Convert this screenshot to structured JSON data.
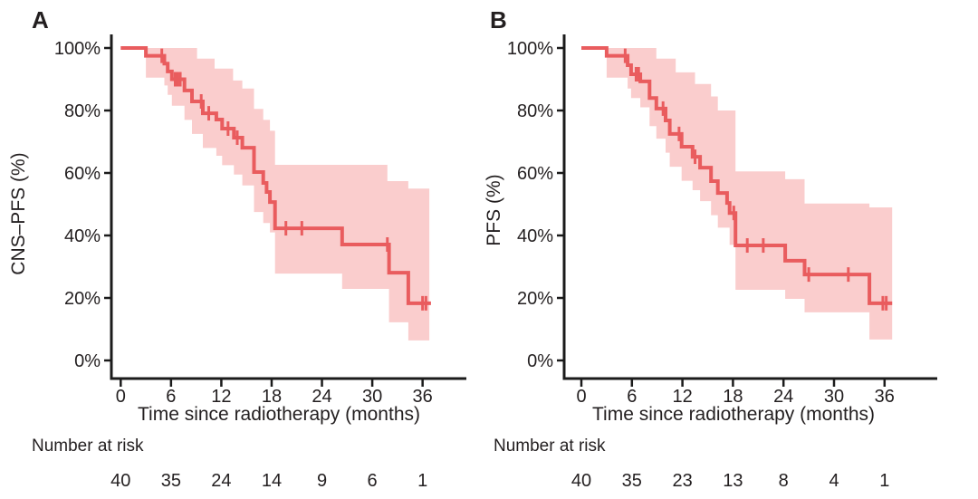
{
  "chart_data": [
    {
      "type": "line",
      "subtype": "kaplan-meier-step-curve-with-confidence-band",
      "panel_label": "A",
      "title": "",
      "xlabel": "Time since radiotherapy (months)",
      "ylabel": "CNS–PFS (%)",
      "x_ticks": [
        0,
        6,
        12,
        18,
        24,
        30,
        36
      ],
      "y_ticks": [
        0,
        20,
        40,
        60,
        80,
        100
      ],
      "y_tick_labels": [
        "0%",
        "20%",
        "40%",
        "60%",
        "80%",
        "100%"
      ],
      "xlim": [
        0,
        41
      ],
      "ylim": [
        0,
        100
      ],
      "grid": false,
      "legend": "none",
      "line_color": "#e95c5e",
      "band_color": "#facdcd",
      "axis_color": "#1b1b1b",
      "series": [
        {
          "name": "CNS-PFS",
          "steps": [
            [
              0,
              100
            ],
            [
              3.0,
              97.5
            ],
            [
              5.2,
              95
            ],
            [
              5.6,
              92.5
            ],
            [
              6.1,
              90
            ],
            [
              7.6,
              86.4
            ],
            [
              8.5,
              82.9
            ],
            [
              9.8,
              79.1
            ],
            [
              11.4,
              77.1
            ],
            [
              12.1,
              74.2
            ],
            [
              13.5,
              71.3
            ],
            [
              14.5,
              68.1
            ],
            [
              15.9,
              60.3
            ],
            [
              17.0,
              56.8
            ],
            [
              17.4,
              53.9
            ],
            [
              17.8,
              50.7
            ],
            [
              18.4,
              42.3
            ],
            [
              26.4,
              37.1
            ],
            [
              32.0,
              28.1
            ],
            [
              34.3,
              18.3
            ]
          ],
          "end_time": 37.0,
          "censors": [
            [
              4.9,
              97.5
            ],
            [
              6.5,
              90
            ],
            [
              6.8,
              90
            ],
            [
              7.1,
              90
            ],
            [
              9.6,
              82.9
            ],
            [
              10.5,
              79.1
            ],
            [
              12.8,
              74.2
            ],
            [
              13.9,
              71.3
            ],
            [
              19.7,
              42.3
            ],
            [
              21.6,
              42.3
            ],
            [
              31.8,
              37.1
            ],
            [
              36.0,
              18.3
            ],
            [
              36.4,
              18.3
            ]
          ],
          "ci_upper": [
            [
              0,
              100
            ],
            [
              9.1,
              96.6
            ],
            [
              11.2,
              93.4
            ],
            [
              13.4,
              89.6
            ],
            [
              14.5,
              87
            ],
            [
              15.9,
              80.5
            ],
            [
              17.0,
              77
            ],
            [
              17.8,
              73.5
            ],
            [
              18.4,
              62.6
            ],
            [
              31.8,
              57.4
            ],
            [
              34.3,
              55
            ]
          ],
          "ci_lower": [
            [
              3.0,
              90.5
            ],
            [
              5.2,
              88
            ],
            [
              5.6,
              85
            ],
            [
              6.1,
              81.5
            ],
            [
              7.6,
              77
            ],
            [
              8.5,
              72.5
            ],
            [
              9.8,
              68
            ],
            [
              11.4,
              65.5
            ],
            [
              12.1,
              62.5
            ],
            [
              13.5,
              59.5
            ],
            [
              14.5,
              56
            ],
            [
              15.9,
              47.5
            ],
            [
              17.0,
              44
            ],
            [
              17.8,
              41
            ],
            [
              18.4,
              27.8
            ],
            [
              26.4,
              22.9
            ],
            [
              32.0,
              12.2
            ],
            [
              34.3,
              6.4
            ]
          ],
          "band_end_time": 36.8
        }
      ],
      "number_at_risk": {
        "label": "Number at risk",
        "times": [
          0,
          6,
          12,
          18,
          24,
          30,
          36
        ],
        "values": [
          40,
          35,
          24,
          14,
          9,
          6,
          1
        ]
      }
    },
    {
      "type": "line",
      "subtype": "kaplan-meier-step-curve-with-confidence-band",
      "panel_label": "B",
      "title": "",
      "xlabel": "Time since radiotherapy (months)",
      "ylabel": "PFS (%)",
      "x_ticks": [
        0,
        6,
        12,
        18,
        24,
        30,
        36
      ],
      "y_ticks": [
        0,
        20,
        40,
        60,
        80,
        100
      ],
      "y_tick_labels": [
        "0%",
        "20%",
        "40%",
        "60%",
        "80%",
        "100%"
      ],
      "xlim": [
        0,
        42
      ],
      "ylim": [
        0,
        100
      ],
      "grid": false,
      "legend": "none",
      "line_color": "#e95c5e",
      "band_color": "#facdcd",
      "axis_color": "#1b1b1b",
      "series": [
        {
          "name": "PFS",
          "steps": [
            [
              0,
              100
            ],
            [
              3.0,
              97.5
            ],
            [
              5.5,
              94.5
            ],
            [
              5.9,
              91.6
            ],
            [
              7.0,
              89.3
            ],
            [
              8.1,
              84.0
            ],
            [
              8.9,
              80.6
            ],
            [
              10.0,
              76.8
            ],
            [
              10.5,
              72.5
            ],
            [
              11.9,
              68.4
            ],
            [
              13.2,
              65.2
            ],
            [
              14.1,
              61.7
            ],
            [
              15.4,
              57.4
            ],
            [
              16.2,
              53.6
            ],
            [
              17.3,
              50.4
            ],
            [
              17.6,
              47.2
            ],
            [
              18.3,
              36.8
            ],
            [
              24.2,
              31.9
            ],
            [
              26.5,
              27.5
            ],
            [
              34.2,
              18.3
            ]
          ],
          "end_time": 36.9,
          "censors": [
            [
              5.2,
              97.5
            ],
            [
              6.5,
              91.6
            ],
            [
              6.8,
              91.6
            ],
            [
              9.7,
              80.6
            ],
            [
              11.6,
              72.5
            ],
            [
              13.5,
              65.2
            ],
            [
              18.1,
              47.2
            ],
            [
              19.7,
              36.8
            ],
            [
              21.6,
              36.8
            ],
            [
              27.0,
              27.5
            ],
            [
              31.7,
              27.5
            ],
            [
              35.8,
              18.3
            ],
            [
              36.2,
              18.3
            ]
          ],
          "ci_upper": [
            [
              0,
              100
            ],
            [
              8.9,
              96.6
            ],
            [
              11.2,
              92.2
            ],
            [
              13.5,
              88.5
            ],
            [
              15.4,
              84.5
            ],
            [
              16.2,
              80
            ],
            [
              18.3,
              60.5
            ],
            [
              24.2,
              58
            ],
            [
              26.5,
              50.2
            ],
            [
              34.2,
              49
            ]
          ],
          "ci_lower": [
            [
              3.0,
              90.5
            ],
            [
              5.5,
              87
            ],
            [
              5.9,
              84
            ],
            [
              7.0,
              81
            ],
            [
              8.1,
              75
            ],
            [
              8.9,
              71
            ],
            [
              10.0,
              66.5
            ],
            [
              10.5,
              62
            ],
            [
              11.9,
              57.5
            ],
            [
              13.2,
              54.5
            ],
            [
              14.1,
              51
            ],
            [
              15.4,
              46.5
            ],
            [
              16.2,
              42.5
            ],
            [
              17.6,
              37
            ],
            [
              18.3,
              22.6
            ],
            [
              24.2,
              19.7
            ],
            [
              26.5,
              15.4
            ],
            [
              34.2,
              6.7
            ]
          ],
          "band_end_time": 36.9
        }
      ],
      "number_at_risk": {
        "label": "Number at risk",
        "times": [
          0,
          6,
          12,
          18,
          24,
          30,
          36
        ],
        "values": [
          40,
          35,
          23,
          13,
          8,
          4,
          1
        ]
      }
    }
  ]
}
